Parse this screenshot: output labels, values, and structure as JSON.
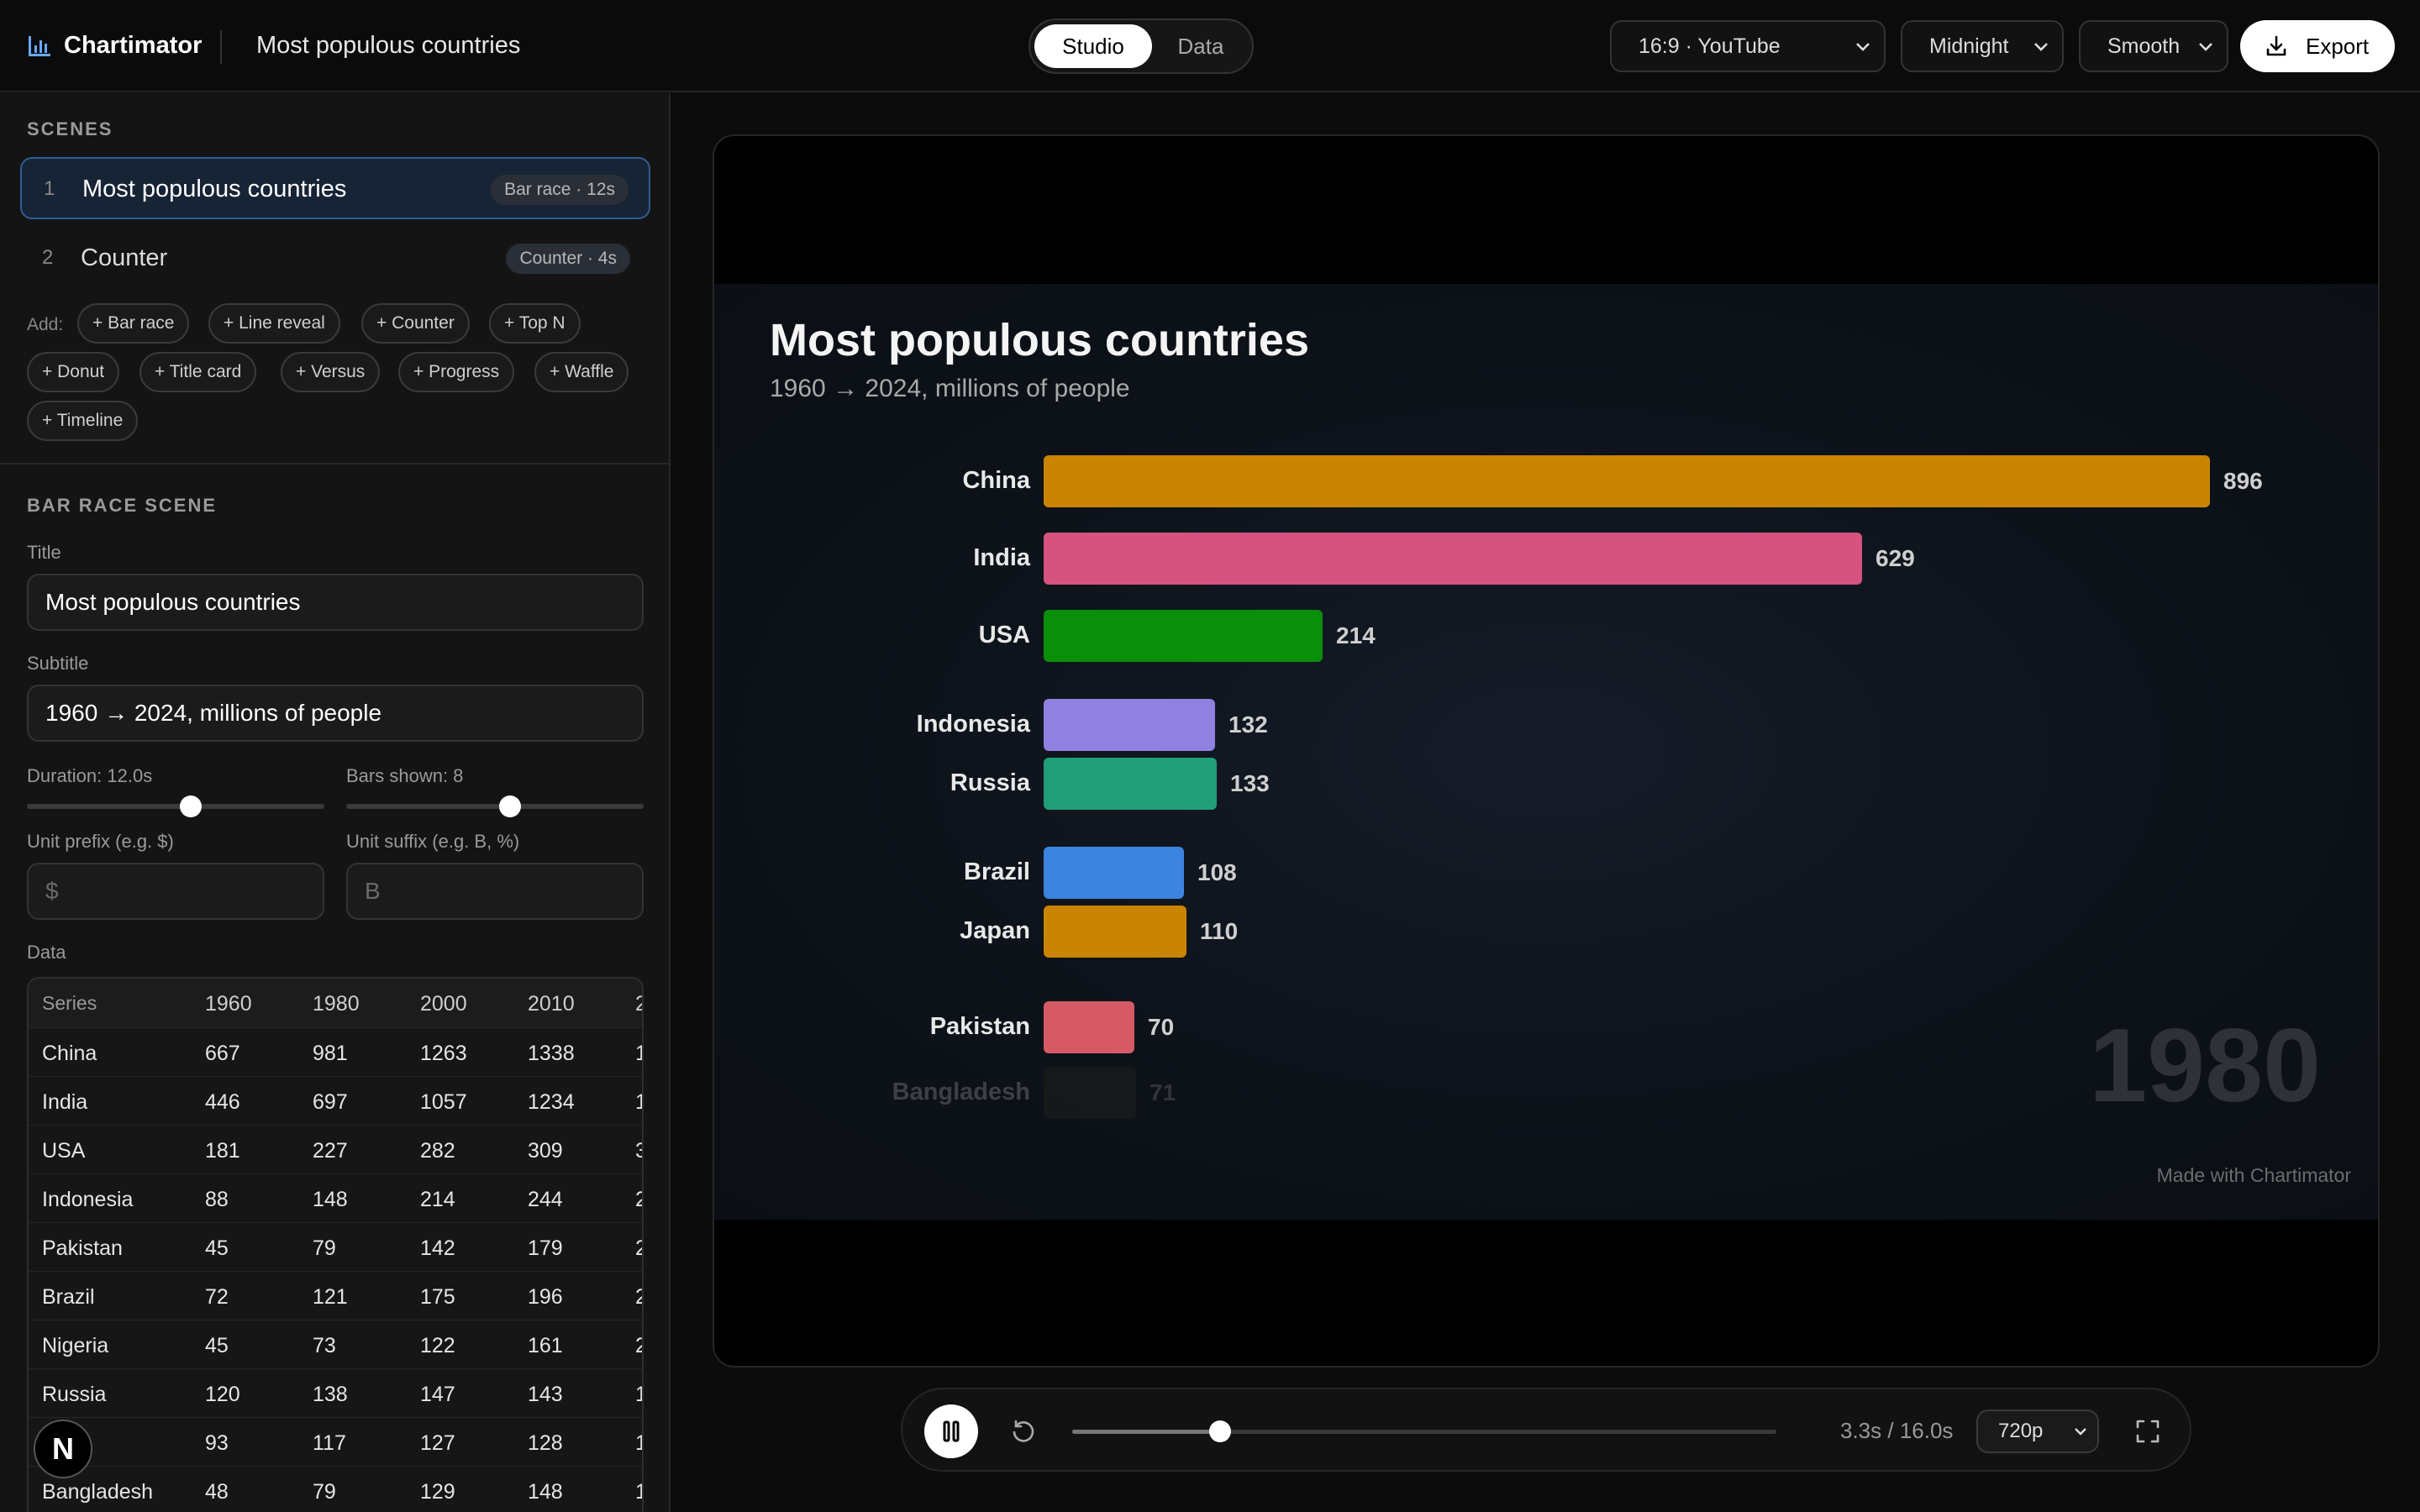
{
  "app": {
    "name": "Chartimator",
    "project_title": "Most populous countries"
  },
  "mode_toggle": {
    "active": "Studio",
    "inactive": "Data"
  },
  "selects": {
    "aspect": "16:9 · YouTube",
    "theme": "Midnight",
    "easing": "Smooth"
  },
  "export_label": "Export",
  "icons": {
    "logo": "bar-chart-icon",
    "select_chevron": "chevron-down-icon",
    "export": "download-icon",
    "play_pause": "pause-icon",
    "replay": "replay-icon",
    "fullscreen": "fullscreen-icon",
    "avatar": "N"
  },
  "sidebar": {
    "scenes_heading": "SCENES",
    "scenes": [
      {
        "num": "1",
        "name": "Most populous countries",
        "badge": "Bar race · 12s"
      },
      {
        "num": "2",
        "name": "Counter",
        "badge": "Counter · 4s"
      }
    ],
    "add_label": "Add:",
    "add_chips": [
      "+ Bar race",
      "+ Line reveal",
      "+ Counter",
      "+ Top N",
      "+ Donut",
      "+ Title card",
      "+ Versus",
      "+ Progress",
      "+ Waffle",
      "+ Timeline"
    ],
    "scene_heading": "BAR RACE SCENE",
    "title_label": "Title",
    "title_value": "Most populous countries",
    "subtitle_label": "Subtitle",
    "subtitle_value": "1960 → 2024, millions of people",
    "duration_label": "Duration: 12.0s",
    "duration_fraction": 0.55,
    "bars_label": "Bars shown: 8",
    "bars_fraction": 0.55,
    "prefix_label": "Unit prefix (e.g. $)",
    "prefix_placeholder": "$",
    "suffix_label": "Unit suffix (e.g. B, %)",
    "suffix_placeholder": "B",
    "data_label": "Data",
    "table": {
      "columns": [
        "Series",
        "1960",
        "1980",
        "2000",
        "2010",
        "2"
      ],
      "rows": [
        [
          "China",
          "667",
          "981",
          "1263",
          "1338",
          "1"
        ],
        [
          "India",
          "446",
          "697",
          "1057",
          "1234",
          "1"
        ],
        [
          "USA",
          "181",
          "227",
          "282",
          "309",
          "3"
        ],
        [
          "Indonesia",
          "88",
          "148",
          "214",
          "244",
          "2"
        ],
        [
          "Pakistan",
          "45",
          "79",
          "142",
          "179",
          "2"
        ],
        [
          "Brazil",
          "72",
          "121",
          "175",
          "196",
          "2"
        ],
        [
          "Nigeria",
          "45",
          "73",
          "122",
          "161",
          "2"
        ],
        [
          "Russia",
          "120",
          "138",
          "147",
          "143",
          "1"
        ],
        [
          "n",
          "93",
          "117",
          "127",
          "128",
          "1"
        ],
        [
          "Bangladesh",
          "48",
          "79",
          "129",
          "148",
          "1"
        ]
      ]
    }
  },
  "preview": {
    "title": "Most populous countries",
    "subtitle": "1960 → 2024, millions of people",
    "year": "1980",
    "watermark": "Made with Chartimator",
    "chart_data": {
      "type": "bar",
      "orientation": "horizontal",
      "title": "Most populous countries",
      "subtitle": "1960 → 2024, millions of people",
      "categories": [
        "China",
        "India",
        "USA",
        "Indonesia",
        "Russia",
        "Brazil",
        "Japan",
        "Pakistan",
        "Bangladesh"
      ],
      "values": [
        896,
        629,
        214,
        132,
        133,
        108,
        110,
        70,
        71
      ],
      "colors": [
        "#c98400",
        "#d6527f",
        "#0a8f0a",
        "#9080e0",
        "#1f9e78",
        "#3d84e0",
        "#c98400",
        "#d65a66",
        "#1c1c1c"
      ],
      "faded": [
        false,
        false,
        false,
        false,
        false,
        false,
        false,
        false,
        true
      ],
      "xlim": [
        0,
        896
      ]
    }
  },
  "playback": {
    "time": "3.3s / 16.0s",
    "progress_fraction": 0.21,
    "resolution": "720p"
  }
}
